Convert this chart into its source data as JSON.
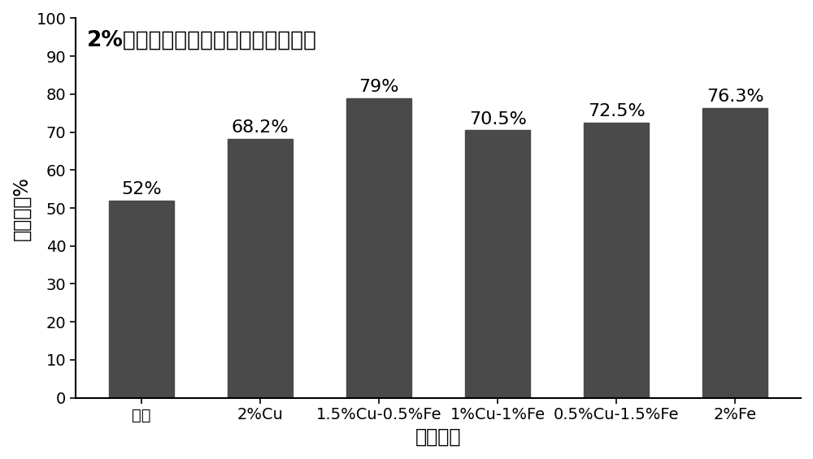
{
  "categories": [
    "飞灰",
    "2%Cu",
    "1.5%Cu-0.5%Fe",
    "1%Cu-1%Fe",
    "0.5%Cu-1.5%Fe",
    "2%Fe"
  ],
  "values": [
    52,
    68.2,
    79,
    70.5,
    72.5,
    76.3
  ],
  "labels": [
    "52%",
    "68.2%",
    "79%",
    "70.5%",
    "72.5%",
    "76.3%"
  ],
  "bar_color": "#4a4a4a",
  "title": "2%浓度氯化物改性飞灰脱汞性能对比",
  "xlabel": "质量分数",
  "ylabel": "吸附效率%",
  "ylim": [
    0,
    100
  ],
  "yticks": [
    0,
    10,
    20,
    30,
    40,
    50,
    60,
    70,
    80,
    90,
    100
  ],
  "background_color": "#ffffff",
  "title_fontsize": 19,
  "label_fontsize": 17,
  "tick_fontsize": 14,
  "bar_label_fontsize": 16
}
